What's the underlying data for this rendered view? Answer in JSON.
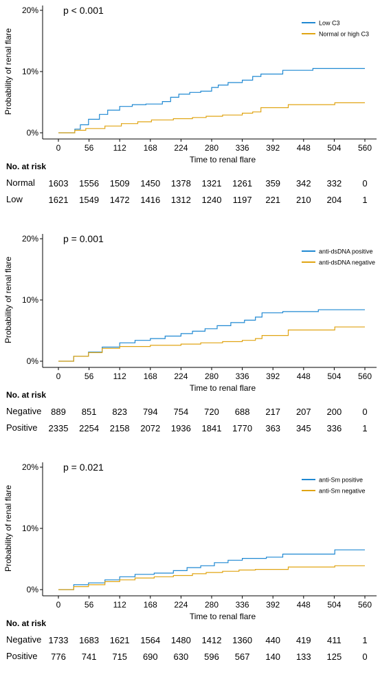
{
  "chart_data": [
    {
      "type": "line",
      "step": true,
      "annotation": "p < 0.001",
      "xlabel": "Time to renal flare",
      "ylabel": "Probability of renal flare",
      "xlim": [
        -10,
        575
      ],
      "ylim": [
        0,
        20
      ],
      "xticks": [
        0,
        56,
        112,
        168,
        224,
        280,
        336,
        392,
        448,
        504,
        560
      ],
      "yticks": [
        0,
        10,
        20
      ],
      "ytick_labels": [
        "0%",
        "10%",
        "20%"
      ],
      "legend_position": "top-right",
      "series": [
        {
          "name": "Low C3",
          "color": "#1f88d2",
          "points": [
            [
              0,
              0
            ],
            [
              30,
              0.6
            ],
            [
              40,
              1.3
            ],
            [
              55,
              2.2
            ],
            [
              75,
              3.0
            ],
            [
              90,
              3.7
            ],
            [
              112,
              4.3
            ],
            [
              135,
              4.6
            ],
            [
              160,
              4.7
            ],
            [
              190,
              5.1
            ],
            [
              205,
              5.8
            ],
            [
              220,
              6.3
            ],
            [
              240,
              6.6
            ],
            [
              260,
              6.8
            ],
            [
              280,
              7.4
            ],
            [
              292,
              7.8
            ],
            [
              310,
              8.2
            ],
            [
              336,
              8.6
            ],
            [
              355,
              9.2
            ],
            [
              370,
              9.6
            ],
            [
              410,
              10.2
            ],
            [
              465,
              10.5
            ],
            [
              560,
              10.5
            ]
          ]
        },
        {
          "name": "Normal or high C3",
          "color": "#e0a412",
          "points": [
            [
              0,
              0
            ],
            [
              30,
              0.4
            ],
            [
              50,
              0.7
            ],
            [
              85,
              1.1
            ],
            [
              115,
              1.5
            ],
            [
              145,
              1.8
            ],
            [
              170,
              2.1
            ],
            [
              210,
              2.3
            ],
            [
              245,
              2.5
            ],
            [
              270,
              2.7
            ],
            [
              300,
              2.9
            ],
            [
              336,
              3.2
            ],
            [
              355,
              3.4
            ],
            [
              370,
              4.1
            ],
            [
              420,
              4.6
            ],
            [
              505,
              4.9
            ],
            [
              560,
              4.9
            ]
          ]
        }
      ],
      "risk_table": {
        "title": "No. at risk",
        "rows": [
          {
            "label": "Normal",
            "values": [
              "1603",
              "1556",
              "1509",
              "1450",
              "1378",
              "1321",
              "1261",
              "359",
              "342",
              "332",
              "0"
            ]
          },
          {
            "label": "Low",
            "values": [
              "1621",
              "1549",
              "1472",
              "1416",
              "1312",
              "1240",
              "1197",
              "221",
              "210",
              "204",
              "1"
            ]
          }
        ]
      }
    },
    {
      "type": "line",
      "step": true,
      "annotation": "p = 0.001",
      "xlabel": "Time to renal flare",
      "ylabel": "Probability of renal flare",
      "xlim": [
        -10,
        575
      ],
      "ylim": [
        0,
        20
      ],
      "xticks": [
        0,
        56,
        112,
        168,
        224,
        280,
        336,
        392,
        448,
        504,
        560
      ],
      "yticks": [
        0,
        10,
        20
      ],
      "ytick_labels": [
        "0%",
        "10%",
        "20%"
      ],
      "legend_position": "top-right",
      "series": [
        {
          "name": "anti-dsDNA positive",
          "color": "#1f88d2",
          "points": [
            [
              0,
              0
            ],
            [
              28,
              0.8
            ],
            [
              55,
              1.5
            ],
            [
              80,
              2.3
            ],
            [
              112,
              3.0
            ],
            [
              140,
              3.4
            ],
            [
              168,
              3.7
            ],
            [
              195,
              4.1
            ],
            [
              224,
              4.5
            ],
            [
              245,
              4.9
            ],
            [
              268,
              5.3
            ],
            [
              290,
              5.8
            ],
            [
              315,
              6.3
            ],
            [
              340,
              6.7
            ],
            [
              360,
              7.2
            ],
            [
              372,
              7.9
            ],
            [
              410,
              8.1
            ],
            [
              475,
              8.4
            ],
            [
              560,
              8.4
            ]
          ]
        },
        {
          "name": "anti-dsDNA negative",
          "color": "#e0a412",
          "points": [
            [
              0,
              0
            ],
            [
              28,
              0.8
            ],
            [
              55,
              1.4
            ],
            [
              80,
              2.1
            ],
            [
              112,
              2.4
            ],
            [
              168,
              2.6
            ],
            [
              224,
              2.8
            ],
            [
              260,
              3.0
            ],
            [
              300,
              3.2
            ],
            [
              336,
              3.4
            ],
            [
              360,
              3.7
            ],
            [
              372,
              4.2
            ],
            [
              420,
              5.1
            ],
            [
              505,
              5.6
            ],
            [
              560,
              5.6
            ]
          ]
        }
      ],
      "risk_table": {
        "title": "No. at risk",
        "rows": [
          {
            "label": "Negative",
            "values": [
              "889",
              "851",
              "823",
              "794",
              "754",
              "720",
              "688",
              "217",
              "207",
              "200",
              "0"
            ]
          },
          {
            "label": "Positive",
            "values": [
              "2335",
              "2254",
              "2158",
              "2072",
              "1936",
              "1841",
              "1770",
              "363",
              "345",
              "336",
              "1"
            ]
          }
        ]
      }
    },
    {
      "type": "line",
      "step": true,
      "annotation": "p = 0.021",
      "xlabel": "Time to renal flare",
      "ylabel": "Probability of renal flare",
      "xlim": [
        -10,
        575
      ],
      "ylim": [
        0,
        20
      ],
      "xticks": [
        0,
        56,
        112,
        168,
        224,
        280,
        336,
        392,
        448,
        504,
        560
      ],
      "yticks": [
        0,
        10,
        20
      ],
      "ytick_labels": [
        "0%",
        "10%",
        "20%"
      ],
      "legend_position": "top-right",
      "series": [
        {
          "name": "anti-Sm positive",
          "color": "#1f88d2",
          "points": [
            [
              0,
              0
            ],
            [
              28,
              0.8
            ],
            [
              55,
              1.1
            ],
            [
              85,
              1.6
            ],
            [
              112,
              2.1
            ],
            [
              140,
              2.5
            ],
            [
              175,
              2.7
            ],
            [
              210,
              3.1
            ],
            [
              235,
              3.6
            ],
            [
              260,
              3.9
            ],
            [
              285,
              4.4
            ],
            [
              310,
              4.8
            ],
            [
              336,
              5.1
            ],
            [
              380,
              5.3
            ],
            [
              410,
              5.8
            ],
            [
              505,
              6.5
            ],
            [
              560,
              6.5
            ]
          ]
        },
        {
          "name": "anti-Sm negative",
          "color": "#e0a412",
          "points": [
            [
              0,
              0
            ],
            [
              28,
              0.5
            ],
            [
              55,
              0.8
            ],
            [
              85,
              1.3
            ],
            [
              112,
              1.6
            ],
            [
              140,
              1.9
            ],
            [
              175,
              2.1
            ],
            [
              210,
              2.3
            ],
            [
              245,
              2.6
            ],
            [
              270,
              2.8
            ],
            [
              300,
              3.0
            ],
            [
              330,
              3.2
            ],
            [
              360,
              3.3
            ],
            [
              420,
              3.7
            ],
            [
              505,
              3.9
            ],
            [
              560,
              3.9
            ]
          ]
        }
      ],
      "risk_table": {
        "title": "No. at risk",
        "rows": [
          {
            "label": "Negative",
            "values": [
              "1733",
              "1683",
              "1621",
              "1564",
              "1480",
              "1412",
              "1360",
              "440",
              "419",
              "411",
              "1"
            ]
          },
          {
            "label": "Positive",
            "values": [
              "776",
              "741",
              "715",
              "690",
              "630",
              "596",
              "567",
              "140",
              "133",
              "125",
              "0"
            ]
          }
        ]
      }
    }
  ]
}
